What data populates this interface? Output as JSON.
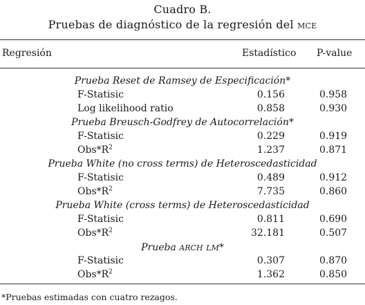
{
  "caption": {
    "line1": "Cuadro B.",
    "line2_prefix": "Pruebas de diagnóstico de la regresión del ",
    "line2_abbrev": "MCE"
  },
  "header": {
    "regresion": "Regresión",
    "estadistico": "Estadístico",
    "pvalue": "P-value"
  },
  "sections": [
    {
      "title": "Prueba Reset de Ramsey de Especificación*",
      "rows": [
        {
          "label": "F-Statisic",
          "label_sup": "",
          "stat": "0.156",
          "pvalue": "0.958"
        },
        {
          "label": "Log likelihood ratio",
          "label_sup": "",
          "stat": "0.858",
          "pvalue": "0.930"
        }
      ]
    },
    {
      "title": "Prueba Breusch-Godfrey de Autocorrelación*",
      "rows": [
        {
          "label": "F-Statisic",
          "label_sup": "",
          "stat": "0.229",
          "pvalue": "0.919"
        },
        {
          "label": "Obs*R",
          "label_sup": "2",
          "stat": "1.237",
          "pvalue": "0.871"
        }
      ]
    },
    {
      "title": "Prueba White (no cross terms) de Heteroscedasticidad",
      "rows": [
        {
          "label": "F-Statisic",
          "label_sup": "",
          "stat": "0.489",
          "pvalue": "0.912"
        },
        {
          "label": "Obs*R",
          "label_sup": "2",
          "stat": "7.735",
          "pvalue": "0.860"
        }
      ]
    },
    {
      "title": "Prueba White (cross terms) de Heteroscedasticidad",
      "rows": [
        {
          "label": "F-Statisic",
          "label_sup": "",
          "stat": "0.811",
          "pvalue": "0.690"
        },
        {
          "label": "Obs*R",
          "label_sup": "2",
          "stat": "32.181",
          "pvalue": "0.507"
        }
      ]
    },
    {
      "title_prefix": "Prueba ",
      "title_abbrev": "ARCH LM",
      "title_suffix": "*",
      "rows": [
        {
          "label": "F-Statisic",
          "label_sup": "",
          "stat": "0.307",
          "pvalue": "0.870"
        },
        {
          "label": "Obs*R",
          "label_sup": "2",
          "stat": "1.362",
          "pvalue": "0.850"
        }
      ]
    }
  ],
  "footnote": "*Pruebas estimadas con cuatro rezagos."
}
